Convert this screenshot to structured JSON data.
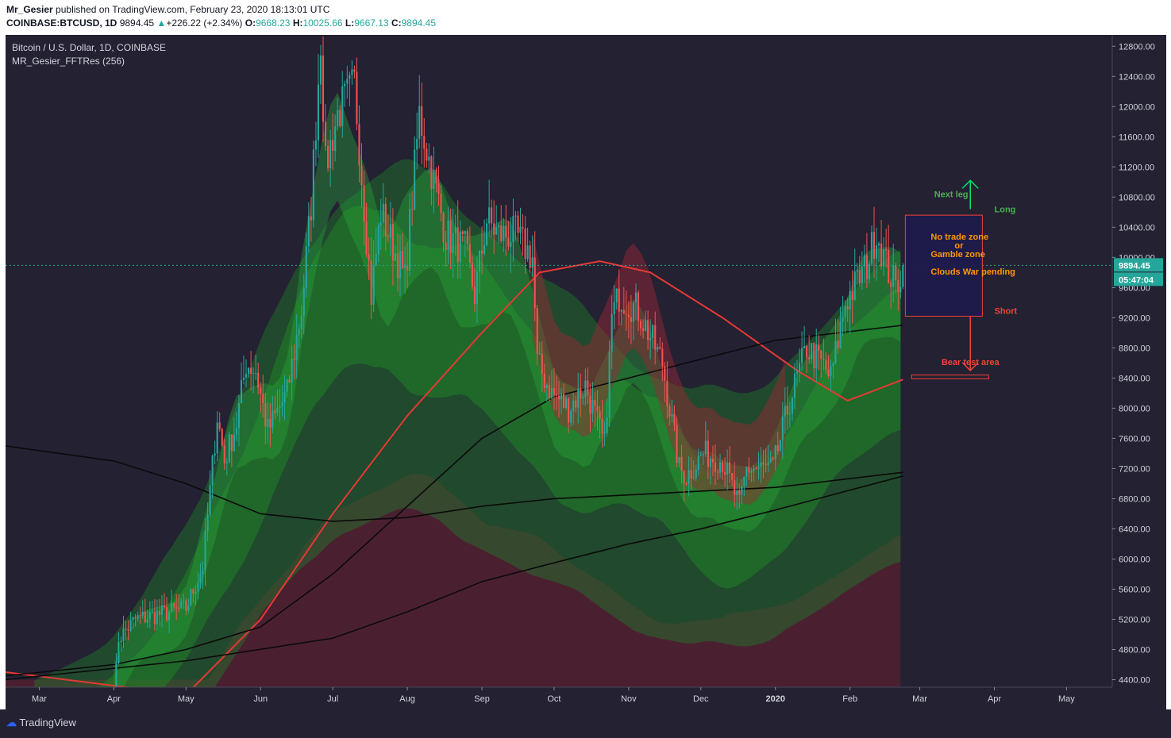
{
  "header": {
    "author": "Mr_Gesier",
    "published_text": "published on TradingView.com, February 23, 2020 18:13:01 UTC",
    "symbol": "COINBASE:BTCUSD, 1D",
    "last": "9894.45",
    "change": "+226.22 (+2.34%)",
    "o_label": "O:",
    "o": "9668.23",
    "h_label": "H:",
    "h": "10025.66",
    "l_label": "L:",
    "l": "9667.13",
    "c_label": "C:",
    "c": "9894.45"
  },
  "legend": {
    "title": "Bitcoin / U.S. Dollar, 1D, COINBASE",
    "indicator": "MR_Gesier_FFTRes (256)"
  },
  "footer": {
    "brand": "TradingView"
  },
  "colors": {
    "background": "#232132",
    "bull": "#26a69a",
    "bear": "#ef5350",
    "green_cloud": "#1e7a2a",
    "red_cloud": "#7a2030",
    "ma_red": "#e53935",
    "ma_black": "#0a0a0a",
    "annotation_green": "#4caf50",
    "annotation_orange": "#ff9800",
    "annotation_red": "#f44336",
    "zone_fill": "#1f1b4d"
  },
  "chart_data": {
    "type": "candlestick",
    "y_axis": {
      "ylim": [
        4300,
        12950
      ],
      "ticks": [
        4400,
        4800,
        5200,
        5600,
        6000,
        6400,
        6800,
        7200,
        7600,
        8000,
        8400,
        8800,
        9200,
        9600,
        10000,
        10400,
        10800,
        11200,
        11600,
        12000,
        12400,
        12800
      ],
      "tick_labels": [
        "4400.00",
        "4800.00",
        "5200.00",
        "5600.00",
        "6000.00",
        "6400.00",
        "6800.00",
        "7200.00",
        "7600.00",
        "8000.00",
        "8400.00",
        "8800.00",
        "9200.00",
        "9600.00",
        "10000.00",
        "10400.00",
        "10800.00",
        "11200.00",
        "11600.00",
        "12000.00",
        "12400.00",
        "12800.00"
      ]
    },
    "x_axis": {
      "start": "2019-02-15",
      "end": "2020-05-20",
      "tick_labels": [
        "Mar",
        "Apr",
        "May",
        "Jun",
        "Jul",
        "Aug",
        "Sep",
        "Oct",
        "Nov",
        "Dec",
        "2020",
        "Feb",
        "Mar",
        "Apr",
        "May"
      ],
      "tick_dates": [
        "2019-03-01",
        "2019-04-01",
        "2019-05-01",
        "2019-06-01",
        "2019-07-01",
        "2019-08-01",
        "2019-09-01",
        "2019-10-01",
        "2019-11-01",
        "2019-12-01",
        "2020-01-01",
        "2020-02-01",
        "2020-03-01",
        "2020-04-01",
        "2020-05-01"
      ]
    },
    "price_anchors": [
      [
        "2019-04-01",
        4100,
        "green"
      ],
      [
        "2019-04-03",
        4950
      ],
      [
        "2019-04-10",
        5200
      ],
      [
        "2019-04-25",
        5300
      ],
      [
        "2019-05-01",
        5350
      ],
      [
        "2019-05-08",
        5900
      ],
      [
        "2019-05-14",
        7900
      ],
      [
        "2019-05-17",
        7300
      ],
      [
        "2019-05-22",
        7800
      ],
      [
        "2019-05-26",
        8600
      ],
      [
        "2019-05-30",
        8500
      ],
      [
        "2019-06-04",
        7700
      ],
      [
        "2019-06-12",
        8200
      ],
      [
        "2019-06-18",
        9300
      ],
      [
        "2019-06-22",
        10700
      ],
      [
        "2019-06-26",
        12900
      ],
      [
        "2019-06-28",
        11200
      ],
      [
        "2019-07-03",
        11900
      ],
      [
        "2019-07-10",
        12300
      ],
      [
        "2019-07-17",
        9500
      ],
      [
        "2019-07-21",
        10600
      ],
      [
        "2019-07-31",
        9700
      ],
      [
        "2019-08-06",
        11900
      ],
      [
        "2019-08-10",
        11300
      ],
      [
        "2019-08-17",
        10300
      ],
      [
        "2019-08-25",
        10100
      ],
      [
        "2019-08-29",
        9500
      ],
      [
        "2019-09-03",
        10500
      ],
      [
        "2019-09-08",
        10300
      ],
      [
        "2019-09-15",
        10300
      ],
      [
        "2019-09-22",
        10000
      ],
      [
        "2019-09-24",
        8600
      ],
      [
        "2019-09-30",
        8200
      ],
      [
        "2019-10-07",
        8000
      ],
      [
        "2019-10-14",
        8300
      ],
      [
        "2019-10-22",
        7500
      ],
      [
        "2019-10-25",
        9200
      ],
      [
        "2019-10-28",
        9500
      ],
      [
        "2019-11-05",
        9300
      ],
      [
        "2019-11-15",
        8600
      ],
      [
        "2019-11-22",
        7200
      ],
      [
        "2019-11-25",
        7100
      ],
      [
        "2019-12-02",
        7400
      ],
      [
        "2019-12-10",
        7300
      ],
      [
        "2019-12-17",
        6700
      ],
      [
        "2019-12-20",
        7200
      ],
      [
        "2019-12-31",
        7200
      ],
      [
        "2020-01-07",
        8100
      ],
      [
        "2020-01-14",
        8800
      ],
      [
        "2020-01-20",
        8600
      ],
      [
        "2020-01-24",
        8400
      ],
      [
        "2020-01-30",
        9400
      ],
      [
        "2020-02-08",
        9900
      ],
      [
        "2020-02-12",
        10350
      ],
      [
        "2020-02-16",
        9900
      ],
      [
        "2020-02-20",
        9600
      ],
      [
        "2020-02-23",
        9894.45
      ]
    ],
    "moving_averages": [
      {
        "color": "red",
        "points": [
          [
            "2019-02-15",
            4500
          ],
          [
            "2019-05-01",
            4200
          ],
          [
            "2019-06-01",
            5200
          ],
          [
            "2019-07-01",
            6600
          ],
          [
            "2019-08-01",
            7900
          ],
          [
            "2019-09-01",
            9000
          ],
          [
            "2019-09-25",
            9800
          ],
          [
            "2019-10-20",
            9950
          ],
          [
            "2019-11-10",
            9800
          ],
          [
            "2019-12-10",
            9200
          ],
          [
            "2020-01-10",
            8500
          ],
          [
            "2020-01-31",
            8100
          ],
          [
            "2020-02-23",
            8380
          ]
        ]
      },
      {
        "color": "black",
        "points": [
          [
            "2019-02-15",
            4450
          ],
          [
            "2019-04-01",
            4600
          ],
          [
            "2019-05-01",
            4800
          ],
          [
            "2019-06-01",
            5100
          ],
          [
            "2019-07-01",
            5800
          ],
          [
            "2019-08-01",
            6700
          ],
          [
            "2019-09-01",
            7600
          ],
          [
            "2019-10-01",
            8150
          ],
          [
            "2019-11-01",
            8400
          ],
          [
            "2019-12-01",
            8650
          ],
          [
            "2020-01-01",
            8900
          ],
          [
            "2020-02-23",
            9100
          ]
        ]
      },
      {
        "color": "black",
        "points": [
          [
            "2019-02-15",
            7500
          ],
          [
            "2019-04-01",
            7300
          ],
          [
            "2019-05-01",
            7000
          ],
          [
            "2019-06-01",
            6600
          ],
          [
            "2019-07-01",
            6500
          ],
          [
            "2019-08-01",
            6550
          ],
          [
            "2019-09-01",
            6700
          ],
          [
            "2019-10-01",
            6800
          ],
          [
            "2019-11-01",
            6850
          ],
          [
            "2019-12-01",
            6900
          ],
          [
            "2020-01-01",
            6950
          ],
          [
            "2020-02-23",
            7150
          ]
        ]
      },
      {
        "color": "black",
        "points": [
          [
            "2019-02-15",
            4400
          ],
          [
            "2019-05-01",
            4650
          ],
          [
            "2019-07-01",
            4950
          ],
          [
            "2019-08-01",
            5300
          ],
          [
            "2019-09-01",
            5700
          ],
          [
            "2019-10-01",
            5950
          ],
          [
            "2019-11-01",
            6200
          ],
          [
            "2019-12-01",
            6400
          ],
          [
            "2020-01-01",
            6650
          ],
          [
            "2020-02-23",
            7100
          ]
        ]
      }
    ],
    "last_price_line": 9894.45,
    "price_label": "9894.45",
    "countdown_label": "05:47:04",
    "annotations": [
      {
        "type": "text",
        "text": "Next leg",
        "color": "green",
        "x": "2020-03-07",
        "y": 10800
      },
      {
        "type": "text",
        "text": "Long",
        "color": "green",
        "x": "2020-04-01",
        "y": 10600
      },
      {
        "type": "text",
        "text": "Short",
        "color": "red",
        "x": "2020-04-01",
        "y": 9250
      },
      {
        "type": "text",
        "text": "Bear test area",
        "color": "red",
        "x": "2020-03-10",
        "y": 8570
      },
      {
        "type": "zone",
        "x0": "2020-02-24",
        "x1": "2020-03-27",
        "y0": 9220,
        "y1": 10560,
        "lines": [
          "No trade zone",
          "or",
          "Gamble zone",
          "",
          "Clouds War pending"
        ]
      },
      {
        "type": "arrow_up",
        "x": "2020-03-22",
        "y0": 10640,
        "y1": 11020
      },
      {
        "type": "arrow_down",
        "x": "2020-03-22",
        "y0": 9220,
        "y1": 8500
      },
      {
        "type": "box",
        "x0": "2020-02-24",
        "x1": "2020-03-27",
        "y0": 8390,
        "y1": 8440
      }
    ]
  }
}
